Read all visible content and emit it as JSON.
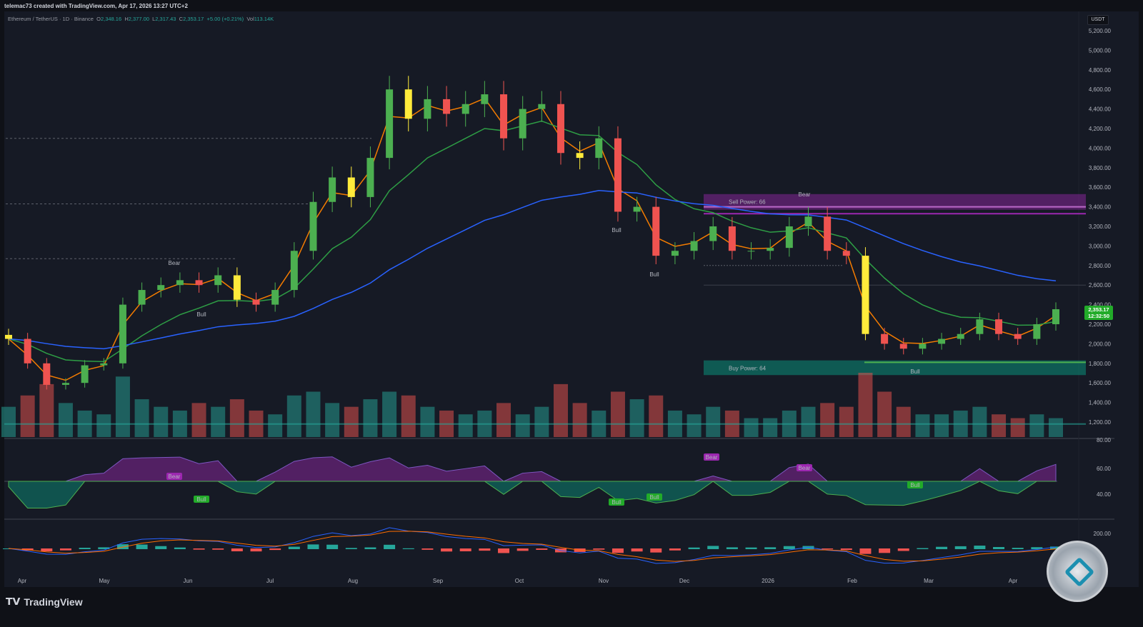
{
  "header": {
    "credit": "telemac73 created with TradingView.com, Apr 17, 2026 13:27 UTC+2"
  },
  "legend": {
    "symbol": "Ethereum / TetherUS · 1D · Binance",
    "o_label": "O",
    "o": "2,348.16",
    "h_label": "H",
    "h": "2,377.00",
    "l_label": "L",
    "l": "2,317.43",
    "c_label": "C",
    "c": "2,353.17",
    "change": "+5.00 (+0.21%)",
    "vol_label": "Vol",
    "vol": "113.14K"
  },
  "currency": "USDT",
  "last_price": "2,353.17",
  "countdown": "12:32:50",
  "brand": "TradingView",
  "colors": {
    "up": "#26a69a",
    "down": "#ef5350",
    "fast_ma": "#f57c00",
    "mid_ma": "#2e9e45",
    "slow_ma": "#2962ff",
    "sell_zone": "#9c27b0",
    "buy_zone": "#089981",
    "bull_bar": "#4caf50",
    "bear_bar": "#ffeb3b"
  },
  "zones": {
    "sell": "Sell Power: 66",
    "buy": "Buy Power: 64"
  },
  "chart_data": [
    {
      "type": "candlestick",
      "title": "",
      "ylim": [
        1100,
        5300
      ],
      "y_ticks": [
        "5,200.00",
        "5,000.00",
        "4,800.00",
        "4,600.00",
        "4,400.00",
        "4,200.00",
        "4,000.00",
        "3,800.00",
        "3,600.00",
        "3,400.00",
        "3,200.00",
        "3,000.00",
        "2,800.00",
        "2,600.00",
        "2,400.00",
        "2,200.00",
        "2,000.00",
        "1,800.00",
        "1,600.00",
        "1,400.00",
        "1,200.00"
      ],
      "x_ticks": [
        "Apr",
        "May",
        "Jun",
        "Jul",
        "Aug",
        "Sep",
        "Oct",
        "Nov",
        "Dec",
        "2026",
        "Feb",
        "Mar",
        "Apr"
      ],
      "closes": [
        2050,
        1800,
        1580,
        1600,
        1780,
        1800,
        2400,
        2550,
        2600,
        2650,
        2600,
        2700,
        2450,
        2400,
        2550,
        2950,
        3450,
        3700,
        3500,
        3900,
        4600,
        4300,
        4500,
        4350,
        4450,
        4550,
        4100,
        4400,
        4450,
        3950,
        3900,
        4100,
        3350,
        3400,
        2900,
        2950,
        3050,
        3200,
        2950,
        2950,
        2980,
        3200,
        3300,
        2950,
        2900,
        2100,
        2000,
        1950,
        2000,
        2050,
        2100,
        2250,
        2100,
        2050,
        2200,
        2353.17
      ],
      "volume": [
        40,
        55,
        70,
        45,
        35,
        30,
        80,
        50,
        40,
        35,
        45,
        40,
        50,
        35,
        30,
        55,
        60,
        45,
        40,
        50,
        60,
        55,
        40,
        35,
        30,
        35,
        45,
        30,
        40,
        70,
        45,
        35,
        60,
        50,
        55,
        35,
        30,
        40,
        35,
        25,
        25,
        35,
        40,
        45,
        40,
        85,
        60,
        40,
        30,
        30,
        35,
        40,
        30,
        25,
        30,
        25
      ],
      "labels_price": [
        "Bear",
        "Bull",
        "Bull",
        "Bull",
        "Bear",
        "Bull"
      ],
      "labels_rsi": [
        "Bear",
        "Bull",
        "Bear",
        "Bull",
        "Bull",
        "Bear",
        "Bull"
      ]
    },
    {
      "type": "line",
      "title": "",
      "y_ticks": [
        "80.00",
        "60.00",
        "40.00"
      ],
      "ylim": [
        30,
        80
      ]
    },
    {
      "type": "histogram",
      "title": "",
      "y_ticks": [
        "200.00"
      ]
    }
  ]
}
